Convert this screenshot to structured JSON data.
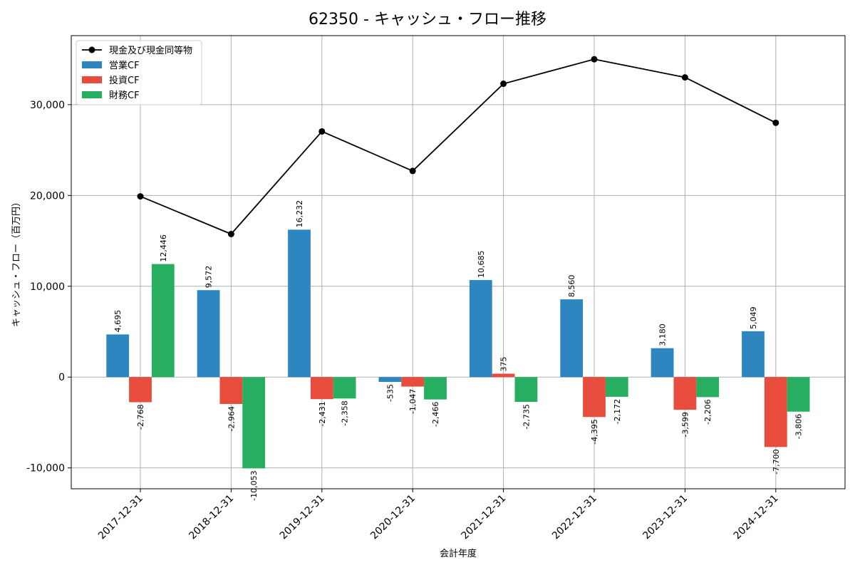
{
  "chart_data": {
    "type": "bar",
    "title": "62350 - キャッシュ・フロー推移",
    "xlabel": "会計年度",
    "ylabel": "キャッシュ・フロー（百万円）",
    "categories": [
      "2017-12-31",
      "2018-12-31",
      "2019-12-31",
      "2020-12-31",
      "2021-12-31",
      "2022-12-31",
      "2023-12-31",
      "2024-12-31"
    ],
    "ylim": [
      -12300,
      37600
    ],
    "yticks": [
      -10000,
      0,
      10000,
      20000,
      30000
    ],
    "ytick_labels": [
      "-10,000",
      "0",
      "10,000",
      "20,000",
      "30,000"
    ],
    "grid": true,
    "legend_position": "top-left",
    "series": [
      {
        "name": "営業CF",
        "kind": "bar",
        "color": "#2e86c1",
        "values": [
          4695,
          9572,
          16232,
          -535,
          10685,
          8560,
          3180,
          5049
        ],
        "labels": [
          "4,695",
          "9,572",
          "16,232",
          "-535",
          "10,685",
          "8,560",
          "3,180",
          "5,049"
        ]
      },
      {
        "name": "投資CF",
        "kind": "bar",
        "color": "#e74c3c",
        "values": [
          -2768,
          -2964,
          -2431,
          -1047,
          375,
          -4395,
          -3599,
          -7700
        ],
        "labels": [
          "-2,768",
          "-2,964",
          "-2,431",
          "-1,047",
          "375",
          "-4,395",
          "-3,599",
          "-7,700"
        ]
      },
      {
        "name": "財務CF",
        "kind": "bar",
        "color": "#27ae60",
        "values": [
          12446,
          -10053,
          -2358,
          -2466,
          -2735,
          -2172,
          -2206,
          -3806
        ],
        "labels": [
          "12,446",
          "-10,053",
          "-2,358",
          "-2,466",
          "-2,735",
          "-2,172",
          "-2,206",
          "-3,806"
        ]
      },
      {
        "name": "現金及び現金同等物",
        "kind": "line",
        "color": "#000000",
        "values": [
          19900,
          15750,
          27050,
          22700,
          32300,
          35000,
          33000,
          28000
        ]
      }
    ]
  }
}
